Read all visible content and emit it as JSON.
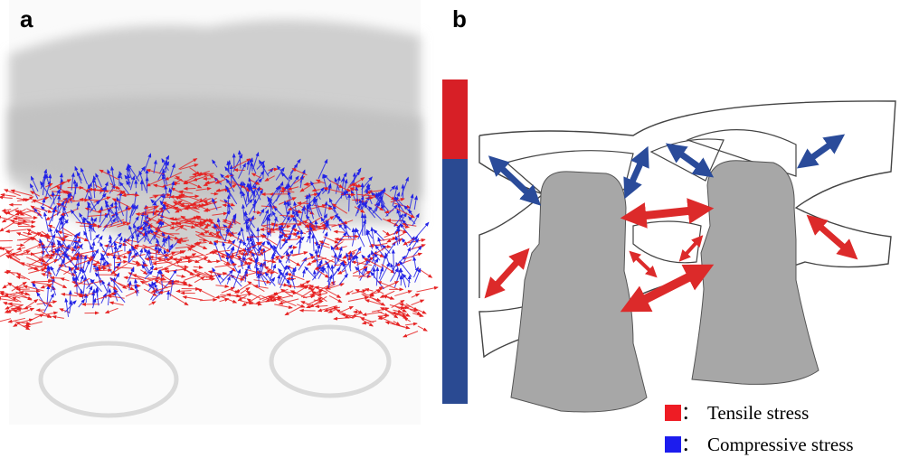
{
  "panels": [
    {
      "label": "a"
    },
    {
      "label": "b"
    }
  ],
  "legend": [
    {
      "separator": "：",
      "label": "Tensile stress",
      "color": "#ee1c24"
    },
    {
      "separator": "：",
      "label": "Compressive stress",
      "color": "#1c1cee"
    }
  ]
}
